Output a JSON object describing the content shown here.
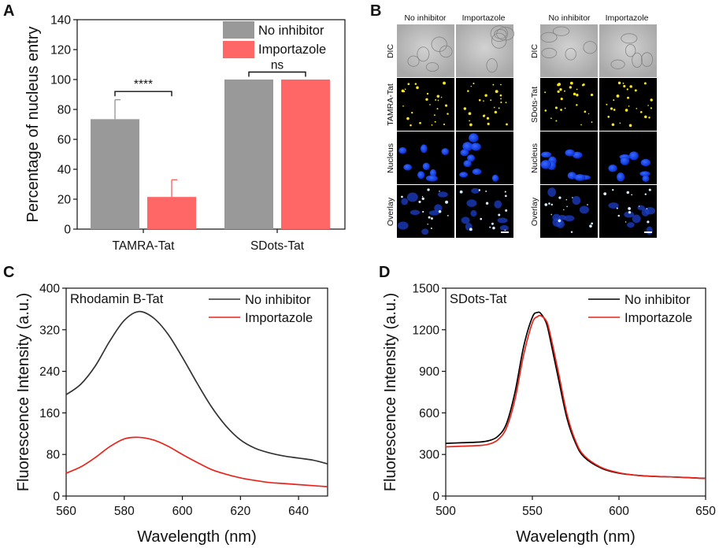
{
  "chart_data": [
    {
      "panel": "A",
      "type": "bar",
      "title": "",
      "xlabel": "",
      "ylabel": "Percentage of nucleus entry",
      "ylim": [
        0,
        140
      ],
      "yticks": [
        0,
        20,
        40,
        60,
        80,
        100,
        120,
        140
      ],
      "categories": [
        "TAMRA-Tat",
        "SDots-Tat"
      ],
      "series": [
        {
          "name": "No inhibitor",
          "color": "#999999",
          "values": [
            73.5,
            100
          ],
          "errors": [
            13,
            0
          ]
        },
        {
          "name": "Importazole",
          "color": "#ff6666",
          "values": [
            21.5,
            100
          ],
          "errors": [
            11.5,
            0
          ]
        }
      ],
      "annotations": [
        {
          "label": "****",
          "category": "TAMRA-Tat",
          "level": 92
        },
        {
          "label": "ns",
          "category": "SDots-Tat",
          "level": 105
        }
      ],
      "legend_position": "top-right"
    },
    {
      "panel": "C",
      "type": "line",
      "annotation": "Rhodamin B-Tat",
      "xlabel": "Wavelength (nm)",
      "ylabel": "Fluorescence Intensity (a.u.)",
      "xlim": [
        560,
        650
      ],
      "ylim": [
        0,
        400
      ],
      "xticks": [
        560,
        580,
        600,
        620,
        640
      ],
      "yticks": [
        0,
        80,
        160,
        240,
        320,
        400
      ],
      "x": [
        560,
        565,
        570,
        575,
        580,
        585,
        590,
        595,
        600,
        605,
        610,
        615,
        620,
        625,
        630,
        635,
        640,
        645,
        650
      ],
      "series": [
        {
          "name": "No inhibitor",
          "color": "#333333",
          "values": [
            195,
            215,
            250,
            298,
            338,
            355,
            343,
            312,
            267,
            218,
            172,
            135,
            108,
            92,
            83,
            77,
            73,
            69,
            62
          ]
        },
        {
          "name": "Importazole",
          "color": "#e8241c",
          "values": [
            44,
            56,
            74,
            95,
            110,
            113,
            108,
            96,
            80,
            65,
            51,
            42,
            35,
            30,
            26,
            24,
            22,
            20,
            18
          ]
        }
      ],
      "legend_position": "top-right"
    },
    {
      "panel": "D",
      "type": "line",
      "annotation": "SDots-Tat",
      "xlabel": "Wavelength (nm)",
      "ylabel": "Fluorescence Intensity (a.u.)",
      "xlim": [
        500,
        650
      ],
      "ylim": [
        0,
        1500
      ],
      "xticks": [
        500,
        550,
        600,
        650
      ],
      "yticks": [
        0,
        300,
        600,
        900,
        1200,
        1500
      ],
      "x": [
        500,
        510,
        520,
        525,
        530,
        535,
        540,
        545,
        550,
        553,
        555,
        558,
        560,
        565,
        570,
        575,
        580,
        590,
        600,
        610,
        620,
        630,
        640,
        650
      ],
      "series": [
        {
          "name": "No inhibitor",
          "color": "#000000",
          "values": [
            380,
            385,
            390,
            400,
            430,
            520,
            750,
            1080,
            1290,
            1325,
            1315,
            1250,
            1150,
            850,
            560,
            380,
            280,
            200,
            165,
            150,
            142,
            138,
            133,
            127
          ]
        },
        {
          "name": "Importazole",
          "color": "#e8241c",
          "values": [
            355,
            360,
            365,
            375,
            405,
            490,
            700,
            1020,
            1250,
            1295,
            1300,
            1265,
            1185,
            895,
            590,
            395,
            290,
            205,
            168,
            150,
            142,
            138,
            133,
            126
          ]
        }
      ],
      "legend_position": "top-right"
    }
  ],
  "panels": {
    "a": {
      "letter": "A"
    },
    "b": {
      "letter": "B",
      "left": {
        "columns": [
          "No inhibitor",
          "Importazole"
        ],
        "rows": [
          "DIC",
          "TAMRA-Tat",
          "Nucleus",
          "Overlay"
        ]
      },
      "right": {
        "columns": [
          "No inhibitor",
          "Importazole"
        ],
        "rows": [
          "DIC",
          "SDots-Tat",
          "Nucleus",
          "Overlay"
        ]
      }
    },
    "c": {
      "letter": "C"
    },
    "d": {
      "letter": "D"
    }
  }
}
